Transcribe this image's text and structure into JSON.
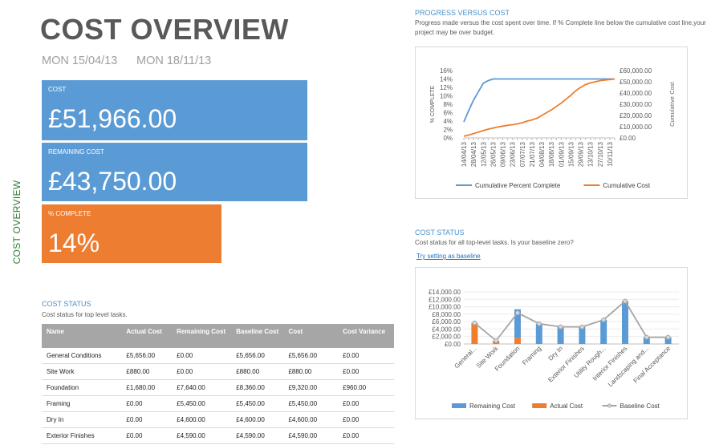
{
  "side_label": "COST OVERVIEW",
  "title": "COST OVERVIEW",
  "dates": {
    "start": "MON 15/04/13",
    "finish": "MON 18/11/13"
  },
  "tiles": {
    "cost": {
      "label": "COST",
      "value": "£51,966.00"
    },
    "remaining": {
      "label": "REMAINING COST",
      "value": "£43,750.00"
    },
    "complete": {
      "label": "% COMPLETE",
      "value": "14%"
    }
  },
  "progress_section": {
    "title": "PROGRESS VERSUS COST",
    "subtitle": "Progress made versus the cost spent over time. If % Complete line below the cumulative cost line,your project may be over budget."
  },
  "cost_status_right": {
    "title": "COST STATUS",
    "subtitle": "Cost status for all top-level tasks. Is your baseline zero?",
    "link": "Try setting as baseline"
  },
  "cost_status_left": {
    "title": "COST STATUS",
    "subtitle": "Cost status for top level tasks."
  },
  "table": {
    "headers": [
      "Name",
      "Actual Cost",
      "Remaining Cost",
      "Baseline Cost",
      "Cost",
      "Cost Variance"
    ],
    "rows": [
      [
        "General Conditions",
        "£5,656.00",
        "£0.00",
        "£5,656.00",
        "£5,656.00",
        "£0.00"
      ],
      [
        "Site Work",
        "£880.00",
        "£0.00",
        "£880.00",
        "£880.00",
        "£0.00"
      ],
      [
        "Foundation",
        "£1,680.00",
        "£7,640.00",
        "£8,360.00",
        "£9,320.00",
        "£960.00"
      ],
      [
        "Framing",
        "£0.00",
        "£5,450.00",
        "£5,450.00",
        "£5,450.00",
        "£0.00"
      ],
      [
        "Dry In",
        "£0.00",
        "£4,600.00",
        "£4,600.00",
        "£4,600.00",
        "£0.00"
      ],
      [
        "Exterior Finishes",
        "£0.00",
        "£4,590.00",
        "£4,590.00",
        "£4,590.00",
        "£0.00"
      ]
    ]
  },
  "colors": {
    "blue": "#5b9bd5",
    "orange": "#ed7d31",
    "gray": "#a5a5a5",
    "green": "#2e7d32"
  },
  "chart_data": [
    {
      "type": "line",
      "title": "",
      "xlabel": "",
      "ylabel": "% COMPLETE",
      "y2label": "Cumulative Cost",
      "x": [
        "14/04/13",
        "21/04/13",
        "28/04/13",
        "05/05/13",
        "12/05/13",
        "19/05/13",
        "26/05/13",
        "02/06/13",
        "09/06/13",
        "16/06/13",
        "23/06/13",
        "30/06/13",
        "07/07/13",
        "14/07/13",
        "21/07/13",
        "28/07/13",
        "04/08/13",
        "11/08/13",
        "18/08/13",
        "25/08/13",
        "01/09/13",
        "08/09/13",
        "15/09/13",
        "22/09/13",
        "29/09/13",
        "06/10/13",
        "13/10/13",
        "20/10/13",
        "27/10/13",
        "03/11/13",
        "10/11/13",
        "17/11/13"
      ],
      "tick_labels": [
        "14/04/13",
        "28/04/13",
        "12/05/13",
        "26/05/13",
        "09/06/13",
        "23/06/13",
        "07/07/13",
        "21/07/13",
        "04/08/13",
        "18/08/13",
        "01/09/13",
        "15/09/13",
        "29/09/13",
        "13/10/13",
        "27/10/13",
        "10/11/13"
      ],
      "ylim": [
        0,
        16
      ],
      "y_ticks": [
        "0%",
        "2%",
        "4%",
        "6%",
        "8%",
        "10%",
        "12%",
        "14%",
        "16%"
      ],
      "y2lim": [
        0,
        60000
      ],
      "y2_ticks": [
        "£0.00",
        "£10,000.00",
        "£20,000.00",
        "£30,000.00",
        "£40,000.00",
        "£50,000.00",
        "£60,000.00"
      ],
      "series": [
        {
          "name": "Cumulative Percent Complete",
          "axis": "left",
          "color": "#5b9bd5",
          "values": [
            3.8,
            6.5,
            9,
            11,
            13,
            13.6,
            14,
            14,
            14,
            14,
            14,
            14,
            14,
            14,
            14,
            14,
            14,
            14,
            14,
            14,
            14,
            14,
            14,
            14,
            14,
            14,
            14,
            14,
            14,
            14,
            14,
            14
          ]
        },
        {
          "name": "Cumulative Cost",
          "axis": "right",
          "color": "#ed7d31",
          "values": [
            1500,
            2600,
            3800,
            5200,
            6500,
            7800,
            8800,
            9800,
            10500,
            11200,
            11800,
            12500,
            13500,
            15000,
            16000,
            17500,
            20000,
            22500,
            25000,
            28000,
            31000,
            34500,
            38000,
            42000,
            45000,
            47500,
            49000,
            50000,
            51000,
            51500,
            52000,
            52500
          ]
        }
      ],
      "legend": "bottom"
    },
    {
      "type": "bar",
      "title": "",
      "categories": [
        "General Conditions",
        "Site Work",
        "Foundation",
        "Framing",
        "Dry In",
        "Exterior Finishes",
        "Utility Rough-Ins",
        "Interior Finishes",
        "Landscaping and Grounds Work",
        "Final Acceptance"
      ],
      "tick_labels": [
        "General...",
        "Site Work",
        "Foundation",
        "Framing",
        "Dry In",
        "Exterior Finishes",
        "Utility Rough...",
        "Interior Finishes",
        "Landscaping and...",
        "Final Acceptance"
      ],
      "ylim": [
        0,
        14000
      ],
      "y_ticks": [
        "£0.00",
        "£2,000.00",
        "£4,000.00",
        "£6,000.00",
        "£8,000.00",
        "£10,000.00",
        "£12,000.00",
        "£14,000.00"
      ],
      "series": [
        {
          "name": "Remaining Cost",
          "type": "bar",
          "color": "#5b9bd5",
          "values": [
            0,
            0,
            7640,
            5450,
            4600,
            4590,
            6500,
            11500,
            1800,
            1800
          ]
        },
        {
          "name": "Actual Cost",
          "type": "bar",
          "color": "#ed7d31",
          "values": [
            5656,
            880,
            1680,
            0,
            0,
            0,
            0,
            0,
            0,
            0
          ]
        },
        {
          "name": "Baseline Cost",
          "type": "line",
          "color": "#a5a5a5",
          "values": [
            5656,
            880,
            8360,
            5450,
            4600,
            4590,
            6500,
            11500,
            1800,
            1800
          ]
        }
      ],
      "legend": "bottom"
    }
  ]
}
